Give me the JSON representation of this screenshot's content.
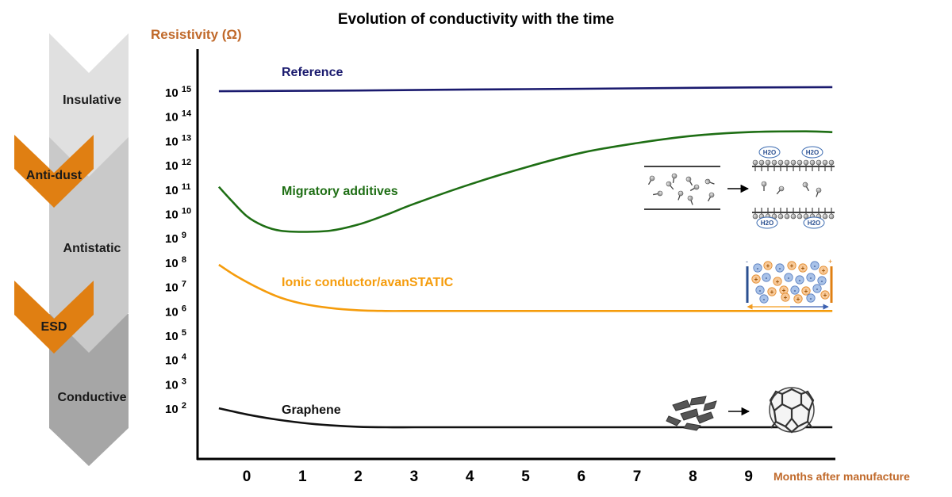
{
  "chart_data": {
    "type": "line",
    "title": "Evolution of conductivity with the time",
    "ylabel": "Resistivity (Ω)",
    "xlabel": "Months after manufacture",
    "x_ticks": [
      "0",
      "1",
      "2",
      "3",
      "4",
      "5",
      "6",
      "7",
      "8",
      "9"
    ],
    "y_ticks": [
      {
        "base": "10",
        "exp": "15",
        "value": 15
      },
      {
        "base": "10",
        "exp": "14",
        "value": 14
      },
      {
        "base": "10",
        "exp": "13",
        "value": 13
      },
      {
        "base": "10",
        "exp": "12",
        "value": 12
      },
      {
        "base": "10",
        "exp": "11",
        "value": 11
      },
      {
        "base": "10",
        "exp": "10",
        "value": 10
      },
      {
        "base": "10",
        "exp": "9",
        "value": 9
      },
      {
        "base": "10",
        "exp": "8",
        "value": 8
      },
      {
        "base": "10",
        "exp": "7",
        "value": 7
      },
      {
        "base": "10",
        "exp": "6",
        "value": 6
      },
      {
        "base": "10",
        "exp": "5",
        "value": 5
      },
      {
        "base": "10",
        "exp": "4",
        "value": 4
      },
      {
        "base": "10",
        "exp": "3",
        "value": 3
      },
      {
        "base": "10",
        "exp": "2",
        "value": 2
      }
    ],
    "xlim": [
      -0.5,
      10.5
    ],
    "ylim": [
      1.0,
      16.5
    ],
    "y_scale": "log",
    "grid": false,
    "series": [
      {
        "name": "Reference",
        "color": "#1a1a6e",
        "x": [
          -0.5,
          2,
          4,
          6,
          8,
          10.5
        ],
        "y": [
          15.03,
          15.06,
          15.1,
          15.13,
          15.17,
          15.2
        ]
      },
      {
        "name": "Migratory additives",
        "color": "#1e6e14",
        "x": [
          -0.5,
          -0.3,
          0,
          0.3,
          0.6,
          1,
          1.5,
          2,
          2.5,
          3,
          4,
          5,
          6,
          7,
          8,
          9,
          10,
          10.5
        ],
        "y": [
          11.1,
          10.6,
          9.9,
          9.5,
          9.3,
          9.25,
          9.3,
          9.55,
          9.95,
          10.4,
          11.2,
          11.9,
          12.5,
          12.9,
          13.2,
          13.35,
          13.38,
          13.35
        ]
      },
      {
        "name": "Ionic conductor/avanSTATIC",
        "color": "#f59c0c",
        "x": [
          -0.5,
          -0.2,
          0.2,
          0.6,
          1,
          1.5,
          2,
          2.5,
          3,
          5,
          7,
          9,
          10.5
        ],
        "y": [
          7.9,
          7.45,
          6.95,
          6.55,
          6.3,
          6.12,
          6.03,
          6.0,
          6.0,
          6.0,
          6.0,
          6.0,
          6.0
        ]
      },
      {
        "name": "Graphene",
        "color": "#111111",
        "x": [
          -0.5,
          0,
          0.5,
          1,
          1.5,
          2,
          2.5,
          3,
          5,
          7,
          9,
          10.5
        ],
        "y": [
          2.0,
          1.75,
          1.55,
          1.4,
          1.3,
          1.24,
          1.22,
          1.22,
          1.22,
          1.22,
          1.22,
          1.22
        ]
      }
    ],
    "bands": [
      "Insulative",
      "Anti-dust",
      "Antistatic",
      "ESD",
      "Conductive"
    ],
    "illustrations": {
      "water_label": "H2O"
    }
  }
}
